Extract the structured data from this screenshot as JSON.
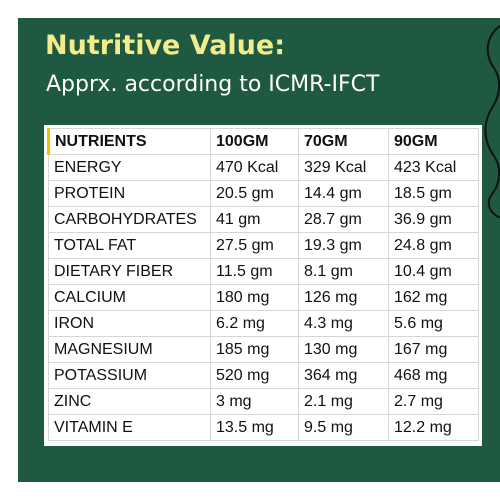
{
  "header": {
    "title": "Nutritive Value:",
    "subtitle": "Apprx. according to ICMR-IFCT"
  },
  "colors": {
    "background": "#1f5942",
    "title": "#f3ec8d",
    "subtitle": "#ffffff",
    "header_accent": "#f2c200"
  },
  "table": {
    "columns": [
      "NUTRIENTS",
      "100GM",
      "70GM",
      "90GM"
    ],
    "rows": [
      [
        "ENERGY",
        "470 Kcal",
        "329 Kcal",
        "423 Kcal"
      ],
      [
        "PROTEIN",
        "20.5 gm",
        "14.4 gm",
        "18.5 gm"
      ],
      [
        "CARBOHYDRATES",
        "41 gm",
        "28.7 gm",
        "36.9 gm"
      ],
      [
        "TOTAL FAT",
        "27.5 gm",
        "19.3 gm",
        "24.8 gm"
      ],
      [
        "DIETARY FIBER",
        "11.5 gm",
        "8.1 gm",
        "10.4 gm"
      ],
      [
        "CALCIUM",
        "180 mg",
        "126 mg",
        "162 mg"
      ],
      [
        "IRON",
        "6.2 mg",
        "4.3 mg",
        "5.6 mg"
      ],
      [
        "MAGNESIUM",
        "185 mg",
        "130 mg",
        "167 mg"
      ],
      [
        "POTASSIUM",
        "520 mg",
        "364 mg",
        "468 mg"
      ],
      [
        "ZINC",
        "3 mg",
        "2.1 mg",
        "2.7 mg"
      ],
      [
        "VITAMIN E",
        "13.5 mg",
        "9.5 mg",
        "12.2 mg"
      ]
    ]
  }
}
